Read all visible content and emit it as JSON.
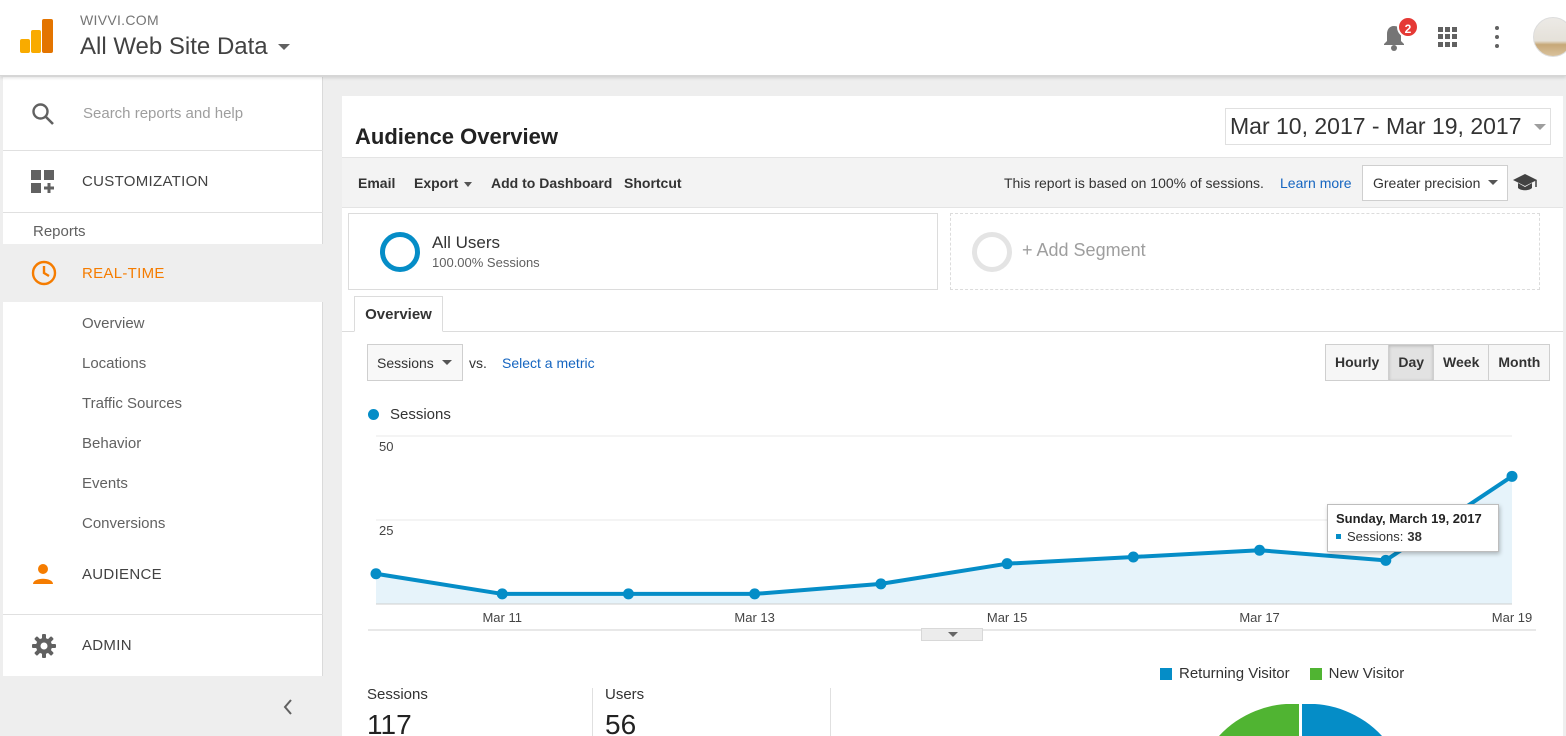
{
  "header": {
    "account": "WIVVI.COM",
    "property_view": "All Web Site Data",
    "notification_count": "2",
    "colors": {
      "logo_dark": "#e37400",
      "logo_light": "#f9ab00",
      "badge": "#e53935"
    }
  },
  "sidebar": {
    "search_placeholder": "Search reports and help",
    "customization": "CUSTOMIZATION",
    "reports_heading": "Reports",
    "realtime": {
      "label": "REAL-TIME",
      "items": [
        "Overview",
        "Locations",
        "Traffic Sources",
        "Behavior",
        "Events",
        "Conversions"
      ]
    },
    "audience": "AUDIENCE",
    "admin": "ADMIN",
    "colors": {
      "active": "#f57c00"
    }
  },
  "report": {
    "title": "Audience Overview",
    "date_range": "Mar 10, 2017 - Mar 19, 2017",
    "toolbar": {
      "email": "Email",
      "export": "Export",
      "add_to_dashboard": "Add to Dashboard",
      "shortcut": "Shortcut",
      "sample_note": "This report is based on 100% of sessions.",
      "learn_more": "Learn more",
      "precision": "Greater precision"
    },
    "segments": {
      "active_name": "All Users",
      "active_sub": "100.00% Sessions",
      "add_label": "+ Add Segment"
    },
    "tab": "Overview",
    "metric": "Sessions",
    "vs": "vs.",
    "select_metric": "Select a metric",
    "granularity": [
      "Hourly",
      "Day",
      "Week",
      "Month"
    ],
    "granularity_selected": "Day",
    "tooltip": {
      "date": "Sunday, March 19, 2017",
      "label": "Sessions:",
      "value": "38"
    },
    "stats": [
      {
        "label": "Sessions",
        "value": "117"
      },
      {
        "label": "Users",
        "value": "56"
      }
    ],
    "pie_legend": [
      "Returning Visitor",
      "New Visitor"
    ],
    "colors": {
      "series": "#058dc7",
      "returning": "#058dc7",
      "new": "#50b432"
    }
  },
  "chart_data": {
    "type": "area",
    "x": [
      "Mar 10",
      "Mar 11",
      "Mar 12",
      "Mar 13",
      "Mar 14",
      "Mar 15",
      "Mar 16",
      "Mar 17",
      "Mar 18",
      "Mar 19"
    ],
    "x_tick_labels": [
      "Mar 11",
      "Mar 13",
      "Mar 15",
      "Mar 17",
      "Mar 19"
    ],
    "series": [
      {
        "name": "Sessions",
        "values": [
          9,
          3,
          3,
          3,
          6,
          12,
          14,
          16,
          13,
          38
        ]
      }
    ],
    "y_ticks": [
      25,
      50
    ],
    "ylim": [
      0,
      50
    ],
    "grid": true,
    "legend": "top-left",
    "title": "",
    "xlabel": "",
    "ylabel": ""
  }
}
